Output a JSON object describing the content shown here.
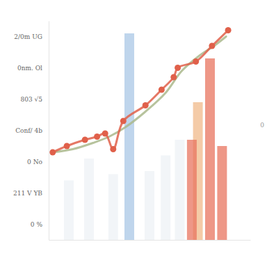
{
  "chart_data": {
    "type": "line",
    "xlim": [
      0,
      100
    ],
    "ylim": [
      -0.5,
      6.5
    ],
    "yticks": [
      {
        "value": 0,
        "label": "0 %"
      },
      {
        "value": 1,
        "label": "211 V YB"
      },
      {
        "value": 2,
        "label": "0 No"
      },
      {
        "value": 3,
        "label": "Conf/ 4b"
      },
      {
        "value": 4,
        "label": "803 √5"
      },
      {
        "value": 5,
        "label": "0nm. Ol"
      },
      {
        "value": 6,
        "label": "2/0m UG"
      }
    ],
    "tick_labels": "y",
    "annotation": "0",
    "series": [
      {
        "type": "bar",
        "color": "#eef1f6",
        "x": [
          10,
          20,
          32,
          50,
          58,
          65
        ],
        "values": [
          1.4,
          2.1,
          1.6,
          1.7,
          2.2,
          2.7
        ]
      },
      {
        "type": "bar",
        "color": "#a9c7e6",
        "x": [
          40
        ],
        "values": [
          6.1
        ]
      },
      {
        "type": "bar",
        "color": "#f0b98a",
        "x": [
          74
        ],
        "values": [
          3.9
        ]
      },
      {
        "type": "bar",
        "color": "#e8745f",
        "x": [
          71,
          80,
          86
        ],
        "values": [
          2.7,
          5.3,
          2.5
        ]
      },
      {
        "type": "line",
        "color": "#aab98c",
        "marker": "none",
        "x": [
          2,
          12,
          22,
          30,
          38,
          48,
          58,
          66,
          75,
          82,
          88
        ],
        "values": [
          2.3,
          2.4,
          2.6,
          2.8,
          3.1,
          3.6,
          4.2,
          4.9,
          5.4,
          5.7,
          6.0
        ]
      },
      {
        "type": "line",
        "color": "#e0604a",
        "marker": "circle",
        "x": [
          2,
          9,
          18,
          24,
          28,
          32,
          37,
          48,
          56,
          62,
          64,
          73,
          81,
          89
        ],
        "values": [
          2.3,
          2.5,
          2.7,
          2.8,
          2.9,
          2.4,
          3.3,
          3.8,
          4.3,
          4.7,
          5.0,
          5.2,
          5.7,
          6.2
        ]
      }
    ]
  }
}
